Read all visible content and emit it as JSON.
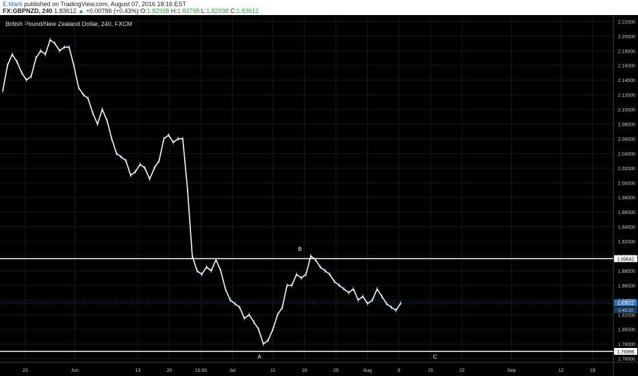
{
  "header": {
    "author": "E.Marti",
    "published": "published on TradingView.com, August 07, 2016 18:16 EST",
    "symbol": "FX:GBPNZD, 240",
    "last": "1.83612",
    "change_arrow": "▲",
    "change": "+0.00786 (+0.43%)",
    "o_label": "O:",
    "o": "1.82938",
    "h_label": "H:",
    "h": "1.83798",
    "l_label": "L:",
    "l": "1.82938",
    "c_label": "C:",
    "c": "1.83612"
  },
  "chart_data": {
    "type": "line",
    "title": "British Pound/New Zealand Dollar, 240, FXCM",
    "colors": {
      "background": "#000000",
      "price": "#ffffff",
      "candle_accent": "#5b9bd5",
      "axis_text": "#c8c8c8",
      "badge": "#2e6fb5"
    },
    "y_range": [
      1.755,
      2.225
    ],
    "y_ticks": [
      "2.22000",
      "2.20000",
      "2.18000",
      "2.16000",
      "2.14000",
      "2.12000",
      "2.10000",
      "2.08000",
      "2.06000",
      "2.04000",
      "2.02000",
      "2.00000",
      "1.98000",
      "1.96000",
      "1.94000",
      "1.92000",
      "1.90000",
      "1.88000",
      "1.86000",
      "1.84000",
      "1.82000",
      "1.80000",
      "1.78000",
      "1.76000"
    ],
    "x_ticks": [
      {
        "label": "23",
        "idx": 5
      },
      {
        "label": "Jun",
        "idx": 16
      },
      {
        "label": "13",
        "idx": 30
      },
      {
        "label": "20",
        "idx": 37
      },
      {
        "label": "15:00",
        "idx": 44
      },
      {
        "label": "Jul",
        "idx": 51
      },
      {
        "label": "11",
        "idx": 60
      },
      {
        "label": "18",
        "idx": 67
      },
      {
        "label": "25",
        "idx": 74
      },
      {
        "label": "Aug",
        "idx": 81
      },
      {
        "label": "8",
        "idx": 88
      },
      {
        "label": "15",
        "idx": 95
      },
      {
        "label": "22",
        "idx": 102
      },
      {
        "label": "Sep",
        "idx": 113
      },
      {
        "label": "12",
        "idx": 124
      },
      {
        "label": "19",
        "idx": 131
      }
    ],
    "x_count": 136,
    "series": [
      {
        "values": [
          2.125,
          2.16,
          2.175,
          2.165,
          2.15,
          2.14,
          2.145,
          2.17,
          2.18,
          2.175,
          2.195,
          2.19,
          2.18,
          2.185,
          2.185,
          2.16,
          2.13,
          2.12,
          2.115,
          2.095,
          2.08,
          2.1,
          2.085,
          2.06,
          2.04,
          2.035,
          2.03,
          2.01,
          2.015,
          2.025,
          2.02,
          2.005,
          2.02,
          2.03,
          2.06,
          2.065,
          2.055,
          2.06,
          2.06,
          1.99,
          1.9,
          1.88,
          1.875,
          1.885,
          1.88,
          1.895,
          1.88,
          1.855,
          1.84,
          1.835,
          1.83,
          1.815,
          1.82,
          1.81,
          1.8,
          1.78,
          1.785,
          1.8,
          1.82,
          1.83,
          1.86,
          1.86,
          1.875,
          1.87,
          1.875,
          1.9,
          1.895,
          1.885,
          1.88,
          1.875,
          1.865,
          1.86,
          1.855,
          1.85,
          1.855,
          1.84,
          1.845,
          1.835,
          1.84,
          1.855,
          1.845,
          1.835,
          1.83,
          1.826,
          1.836
        ]
      }
    ],
    "horizontal_levels": [
      {
        "value": 1.89642,
        "label": "1.89642"
      },
      {
        "value": 1.76996,
        "label": "1.76996"
      }
    ],
    "last_price": {
      "value": 1.83612,
      "label": "1.83612",
      "sub_label": "1:43:20"
    },
    "annotations": [
      {
        "text": "A",
        "idx": 57,
        "value": 1.76
      },
      {
        "text": "B",
        "idx": 66,
        "value": 1.907
      },
      {
        "text": "C",
        "idx": 96,
        "value": 1.76
      }
    ]
  }
}
